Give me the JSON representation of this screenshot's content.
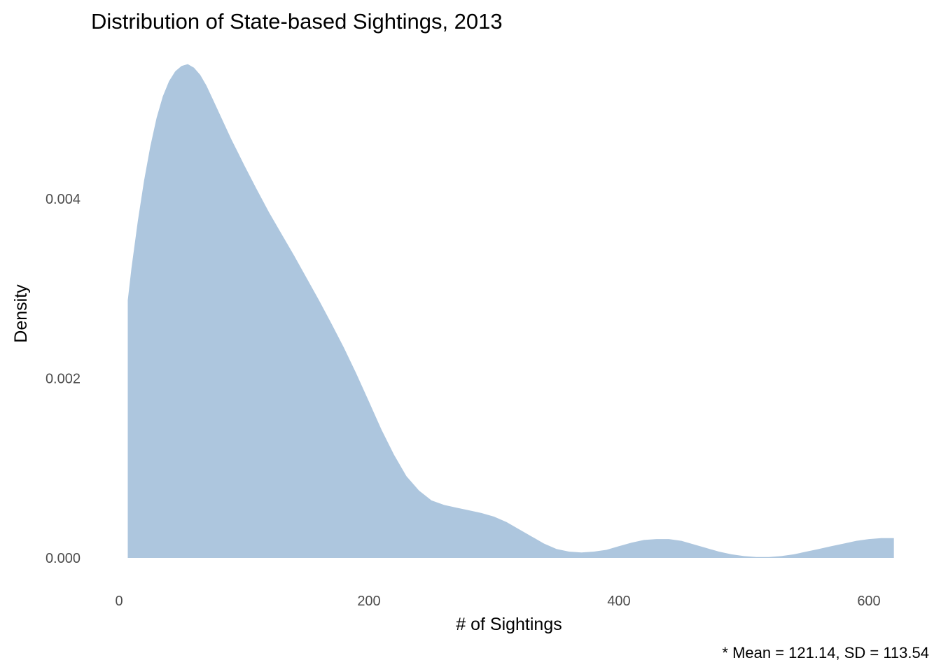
{
  "chart_data": {
    "type": "area",
    "title": "Distribution of State-based Sightings, 2013",
    "xlabel": "# of Sightings",
    "ylabel": "Density",
    "caption": "* Mean = 121.14, SD = 113.54",
    "xlim": [
      0,
      620
    ],
    "ylim": [
      0,
      0.0054
    ],
    "x_ticks": [
      0,
      200,
      400,
      600
    ],
    "x_tick_labels": [
      "0",
      "200",
      "400",
      "600"
    ],
    "y_ticks": [
      0,
      0.002,
      0.004
    ],
    "y_tick_labels": [
      "0.000",
      "0.002",
      "0.004"
    ],
    "grid": false,
    "fill_color": "#adc6de",
    "series": [
      {
        "x": [
          7,
          10,
          15,
          20,
          25,
          30,
          35,
          40,
          45,
          50,
          55,
          60,
          65,
          70,
          75,
          80,
          85,
          90,
          95,
          100,
          110,
          120,
          130,
          140,
          150,
          160,
          170,
          180,
          190,
          200,
          210,
          220,
          230,
          240,
          250,
          260,
          270,
          280,
          290,
          300,
          310,
          320,
          330,
          340,
          350,
          360,
          370,
          380,
          390,
          400,
          410,
          420,
          430,
          440,
          450,
          460,
          470,
          480,
          490,
          500,
          510,
          520,
          530,
          540,
          550,
          560,
          570,
          580,
          590,
          600,
          610,
          620
        ],
        "y": [
          0.00287,
          0.00323,
          0.00375,
          0.0042,
          0.00458,
          0.0049,
          0.00514,
          0.00531,
          0.00542,
          0.00548,
          0.0055,
          0.00546,
          0.00538,
          0.00526,
          0.00511,
          0.00496,
          0.00481,
          0.00466,
          0.00452,
          0.00438,
          0.00411,
          0.00385,
          0.00361,
          0.00337,
          0.00312,
          0.00287,
          0.00261,
          0.00234,
          0.00205,
          0.00174,
          0.00143,
          0.00115,
          0.00091,
          0.00075,
          0.00064,
          0.00059,
          0.00056,
          0.00053,
          0.0005,
          0.00046,
          0.0004,
          0.00032,
          0.00024,
          0.00016,
          0.0001,
          7e-05,
          6e-05,
          7e-05,
          9e-05,
          0.00013,
          0.00017,
          0.0002,
          0.00021,
          0.00021,
          0.00019,
          0.00015,
          0.00011,
          7e-05,
          4e-05,
          2e-05,
          1e-05,
          1e-05,
          2e-05,
          4e-05,
          7e-05,
          0.0001,
          0.00013,
          0.00016,
          0.00019,
          0.00021,
          0.00022,
          0.00022
        ]
      }
    ]
  }
}
